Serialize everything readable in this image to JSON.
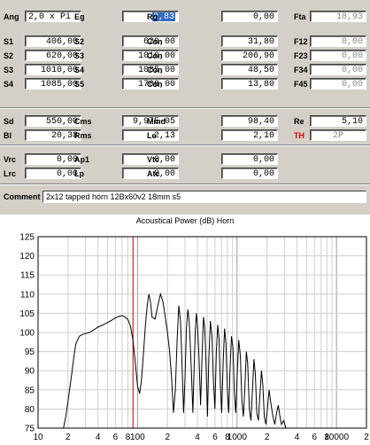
{
  "params": [
    [
      {
        "label": "Ang",
        "value": "2,0 x Pi",
        "align": "left"
      },
      {
        "label": "Eg",
        "value": "2,83",
        "selected": true
      },
      {
        "label": "Rg",
        "value": "0,00"
      },
      {
        "label": "Fta",
        "value": "18,93",
        "disabled": true
      }
    ],
    [
      {
        "label": "S1",
        "value": "406,00"
      },
      {
        "label": "S2",
        "value": "620,00"
      },
      {
        "label": "Con",
        "value": "31,80"
      },
      {
        "label": "F12",
        "value": "0,00",
        "disabled": true
      }
    ],
    [
      {
        "label": "S2",
        "value": "620,00"
      },
      {
        "label": "S3",
        "value": "1010,00"
      },
      {
        "label": "Con",
        "value": "206,90"
      },
      {
        "label": "F23",
        "value": "0,00",
        "disabled": true
      }
    ],
    [
      {
        "label": "S3",
        "value": "1010,00"
      },
      {
        "label": "S4",
        "value": "1085,00"
      },
      {
        "label": "Con",
        "value": "48,50"
      },
      {
        "label": "F34",
        "value": "0,00",
        "disabled": true
      }
    ],
    [
      {
        "label": "S4",
        "value": "1085,00"
      },
      {
        "label": "S5",
        "value": "1708,00"
      },
      {
        "label": "Con",
        "value": "13,80"
      },
      {
        "label": "F45",
        "value": "0,00",
        "disabled": true
      }
    ],
    [
      {
        "label": "Sd",
        "value": "550,00"
      },
      {
        "label": "Cms",
        "value": "9,97E-05"
      },
      {
        "label": "Mmd",
        "value": "98,40"
      },
      {
        "label": "Re",
        "value": "5,10"
      }
    ],
    [
      {
        "label": "Bl",
        "value": "20,38"
      },
      {
        "label": "Rms",
        "value": "2,13"
      },
      {
        "label": "Le",
        "value": "2,10"
      },
      {
        "label": "TH",
        "value": "2P",
        "red": true,
        "disabled": true,
        "align": "center"
      }
    ],
    [
      {
        "label": "Vrc",
        "value": "0,00"
      },
      {
        "label": "Ap1",
        "value": "0,00"
      },
      {
        "label": "Vtc",
        "value": "0,00"
      }
    ],
    [
      {
        "label": "Lrc",
        "value": "0,00"
      },
      {
        "label": "Lp",
        "value": "0,00"
      },
      {
        "label": "Atc",
        "value": "0,00"
      }
    ]
  ],
  "comment": {
    "label": "Comment",
    "value": "2x12 tapped horn 12Bx60v2 18mm s5"
  },
  "chart_data": {
    "type": "line",
    "title": "Acoustical Power (dB)  Horn",
    "x_scale": "log",
    "xlim": [
      10,
      20000
    ],
    "ylim": [
      75,
      125
    ],
    "x_ticks": [
      {
        "v": 10,
        "label": "10"
      },
      {
        "v": 20,
        "label": "2"
      },
      {
        "v": 40,
        "label": "4"
      },
      {
        "v": 60,
        "label": "6"
      },
      {
        "v": 80,
        "label": "8"
      },
      {
        "v": 100,
        "label": "100"
      },
      {
        "v": 200,
        "label": "2"
      },
      {
        "v": 400,
        "label": "4"
      },
      {
        "v": 600,
        "label": "6"
      },
      {
        "v": 800,
        "label": "8"
      },
      {
        "v": 1000,
        "label": "1000"
      },
      {
        "v": 2000,
        "label": "2"
      },
      {
        "v": 4000,
        "label": "4"
      },
      {
        "v": 6000,
        "label": "6"
      },
      {
        "v": 8000,
        "label": "8"
      },
      {
        "v": 10000,
        "label": "10000"
      },
      {
        "v": 20000,
        "label": "2"
      }
    ],
    "y_ticks": [
      75,
      80,
      85,
      90,
      95,
      100,
      105,
      110,
      115,
      120,
      125
    ],
    "marker_x": 90,
    "grid": true,
    "line_color": "#000000",
    "marker_color": "#e00000",
    "x": [
      18,
      19,
      20,
      21,
      22,
      23,
      24,
      26,
      28,
      30,
      33,
      36,
      40,
      45,
      50,
      55,
      60,
      65,
      70,
      75,
      80,
      85,
      90,
      95,
      100,
      105,
      110,
      115,
      120,
      125,
      130,
      135,
      140,
      150,
      160,
      170,
      180,
      190,
      200,
      210,
      220,
      230,
      240,
      250,
      260,
      270,
      280,
      290,
      300,
      310,
      320,
      330,
      340,
      350,
      360,
      370,
      380,
      390,
      400,
      415,
      430,
      445,
      460,
      475,
      490,
      505,
      520,
      540,
      560,
      580,
      600,
      620,
      640,
      660,
      680,
      700,
      725,
      750,
      775,
      800,
      825,
      850,
      880,
      910,
      940,
      970,
      1000,
      1040,
      1080,
      1120,
      1160,
      1200,
      1240,
      1280,
      1330,
      1380,
      1430,
      1480,
      1530,
      1580,
      1640,
      1700,
      1760,
      1820,
      1880,
      1950,
      2020,
      2100,
      2200,
      2300,
      2400,
      2500,
      2600,
      2700,
      2800,
      2950,
      3100
    ],
    "y": [
      75,
      78,
      82,
      86,
      90,
      94,
      97,
      99,
      99.5,
      99.7,
      100,
      100.6,
      101.4,
      102,
      102.6,
      103.2,
      103.8,
      104.2,
      104.4,
      104,
      103.4,
      101.5,
      98,
      92,
      86,
      84,
      88,
      95,
      102,
      107,
      110,
      108,
      104,
      103.5,
      107,
      110,
      108,
      104,
      100,
      95,
      88,
      79,
      85,
      98,
      107,
      103,
      92,
      79,
      88,
      101,
      106,
      103,
      96,
      88,
      79,
      90,
      100,
      105,
      102,
      93,
      81,
      94,
      104,
      101,
      90,
      78,
      93,
      103,
      99,
      87,
      80,
      95,
      102,
      98,
      86,
      79,
      92,
      101,
      97,
      85,
      79,
      90,
      99,
      96,
      84,
      79,
      88,
      98,
      94,
      82,
      78,
      86,
      95,
      92,
      80,
      77,
      85,
      93,
      89,
      79,
      77,
      84,
      90,
      86,
      78,
      76,
      80,
      85,
      81,
      78,
      76,
      79,
      81,
      78,
      76,
      77,
      75
    ]
  }
}
